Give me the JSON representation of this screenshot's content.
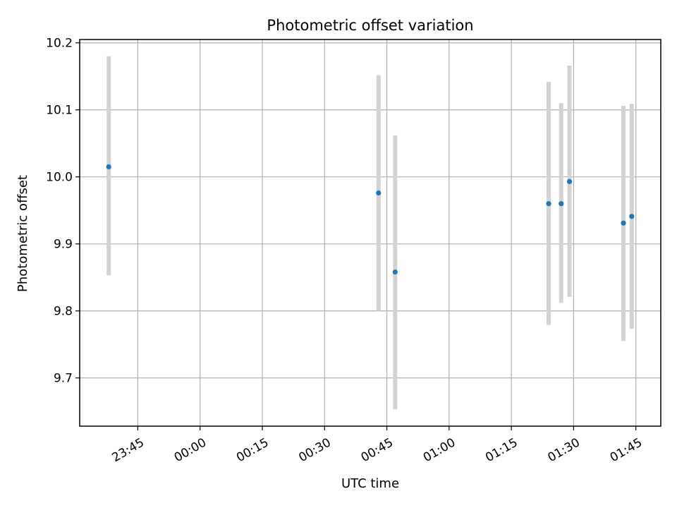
{
  "chart_data": {
    "type": "scatter",
    "title": "Photometric offset variation",
    "xlabel": "UTC time",
    "ylabel": "Photometric offset",
    "x_ticks": [
      "23:45",
      "00:00",
      "00:15",
      "00:30",
      "00:45",
      "01:00",
      "01:15",
      "01:30",
      "01:45"
    ],
    "y_ticks": [
      "9.7",
      "9.8",
      "9.9",
      "10.0",
      "10.1",
      "10.2"
    ],
    "xlim": [
      "23:31",
      "01:51"
    ],
    "ylim": [
      9.628,
      10.205
    ],
    "grid": true,
    "colors": {
      "point": "#1f77b4",
      "errorbar": "#d3d3d3",
      "grid": "#b0b0b0"
    },
    "points": [
      {
        "x": "23:38",
        "y": 10.015,
        "ylow": 9.853,
        "yhigh": 10.18
      },
      {
        "x": "00:43",
        "y": 9.976,
        "ylow": 9.8,
        "yhigh": 10.152
      },
      {
        "x": "00:47",
        "y": 9.858,
        "ylow": 9.653,
        "yhigh": 10.062
      },
      {
        "x": "01:24",
        "y": 9.96,
        "ylow": 9.779,
        "yhigh": 10.142
      },
      {
        "x": "01:27",
        "y": 9.96,
        "ylow": 9.812,
        "yhigh": 10.11
      },
      {
        "x": "01:29",
        "y": 9.993,
        "ylow": 9.821,
        "yhigh": 10.166
      },
      {
        "x": "01:42",
        "y": 9.931,
        "ylow": 9.755,
        "yhigh": 10.106
      },
      {
        "x": "01:44",
        "y": 9.941,
        "ylow": 9.773,
        "yhigh": 10.109
      }
    ]
  }
}
